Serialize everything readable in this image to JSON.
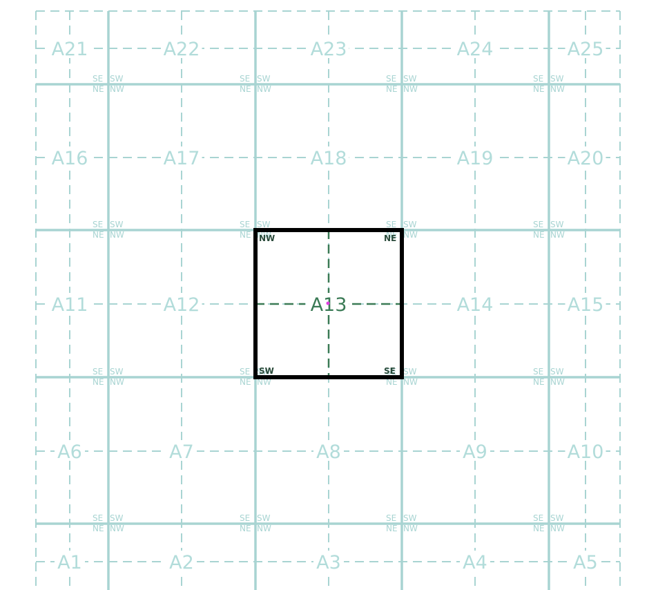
{
  "grid": {
    "rows": [
      [
        "A21",
        "A22",
        "A23",
        "A24",
        "A25"
      ],
      [
        "A16",
        "A17",
        "A18",
        "A19",
        "A20"
      ],
      [
        "A11",
        "A12",
        "A13",
        "A14",
        "A15"
      ],
      [
        "A6",
        "A7",
        "A8",
        "A9",
        "A10"
      ],
      [
        "A1",
        "A2",
        "A3",
        "A4",
        "A5"
      ]
    ],
    "selected_cell": "A13"
  },
  "corner_labels": {
    "se": "SE",
    "sw": "SW",
    "ne": "NE",
    "nw": "NW"
  },
  "colors": {
    "grid_line": "#a8d4d2",
    "grid_label": "#b2dcda",
    "corner_label": "#a8d4d2",
    "selection_border": "#000000",
    "selection_text": "#3a7a55",
    "selection_center_dot": "#e040e0",
    "background": "#ffffff"
  }
}
